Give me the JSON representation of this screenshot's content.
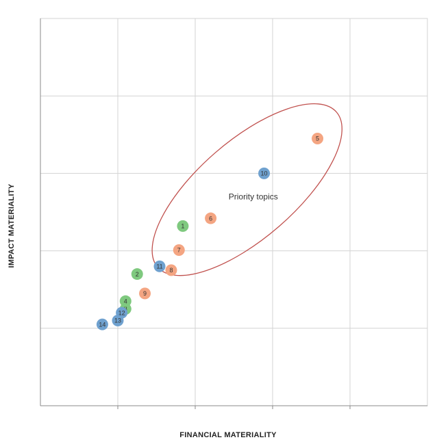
{
  "chart_data": {
    "type": "scatter",
    "title": "",
    "xlabel": "FINANCIAL MATERIALITY",
    "ylabel": "IMPACT MATERIALITY",
    "xlim": [
      0,
      5
    ],
    "ylim": [
      0,
      5
    ],
    "grid": true,
    "colors": {
      "orange": "#f4a582",
      "green": "#7fc97f",
      "blue": "#6fa1cf",
      "ellipse": "#c0504d",
      "grid": "#d3d3d3",
      "axis": "#888888"
    },
    "points": [
      {
        "label": "1",
        "x": 1.84,
        "y": 2.32,
        "color": "green"
      },
      {
        "label": "2",
        "x": 1.25,
        "y": 1.7,
        "color": "green"
      },
      {
        "label": "3",
        "x": 1.1,
        "y": 1.25,
        "color": "green"
      },
      {
        "label": "4",
        "x": 1.1,
        "y": 1.35,
        "color": "green"
      },
      {
        "label": "5",
        "x": 3.58,
        "y": 3.45,
        "color": "orange"
      },
      {
        "label": "6",
        "x": 2.2,
        "y": 2.42,
        "color": "orange"
      },
      {
        "label": "7",
        "x": 1.79,
        "y": 2.01,
        "color": "orange"
      },
      {
        "label": "8",
        "x": 1.69,
        "y": 1.75,
        "color": "orange"
      },
      {
        "label": "9",
        "x": 1.35,
        "y": 1.45,
        "color": "orange"
      },
      {
        "label": "10",
        "x": 2.89,
        "y": 3.0,
        "color": "blue"
      },
      {
        "label": "11",
        "x": 1.54,
        "y": 1.8,
        "color": "blue"
      },
      {
        "label": "12",
        "x": 1.05,
        "y": 1.2,
        "color": "blue"
      },
      {
        "label": "13",
        "x": 1.0,
        "y": 1.1,
        "color": "blue"
      },
      {
        "label": "14",
        "x": 0.8,
        "y": 1.05,
        "color": "blue"
      }
    ],
    "annotations": [
      {
        "text": "Priority topics",
        "x": 2.75,
        "y": 2.7
      }
    ],
    "ellipse": {
      "cx": 2.67,
      "cy": 2.79,
      "rx": 1.53,
      "ry": 0.63,
      "angle": -41
    }
  }
}
